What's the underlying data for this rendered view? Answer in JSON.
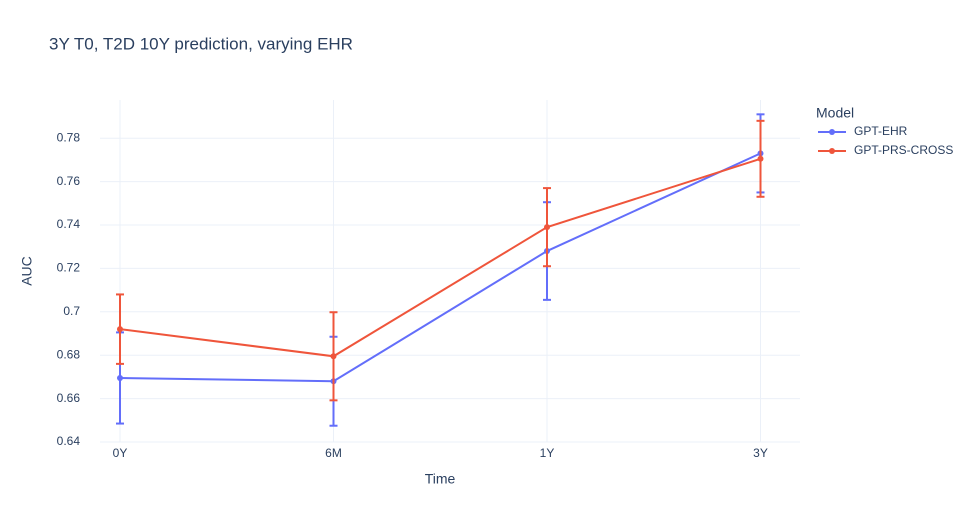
{
  "chart_data": {
    "type": "line",
    "title": "3Y T0, T2D 10Y prediction, varying EHR",
    "x_label": "Time",
    "y_label": "AUC",
    "categories": [
      "0Y",
      "6M",
      "1Y",
      "3Y"
    ],
    "series": [
      {
        "name": "GPT-EHR",
        "color": "#636efa",
        "values": [
          0.6695,
          0.668,
          0.728,
          0.773
        ],
        "errors": [
          0.021,
          0.0205,
          0.0225,
          0.018
        ]
      },
      {
        "name": "GPT-PRS-CROSS",
        "color": "#ef553b",
        "values": [
          0.692,
          0.6795,
          0.739,
          0.7705
        ],
        "errors": [
          0.016,
          0.0203,
          0.018,
          0.0175
        ]
      }
    ],
    "ylim": [
      0.64,
      0.7976
    ],
    "yticks": [
      0.64,
      0.66,
      0.68,
      0.7,
      0.72,
      0.74,
      0.76,
      0.78
    ],
    "grid": true,
    "legend_title": "Model",
    "legend_position": "right"
  }
}
